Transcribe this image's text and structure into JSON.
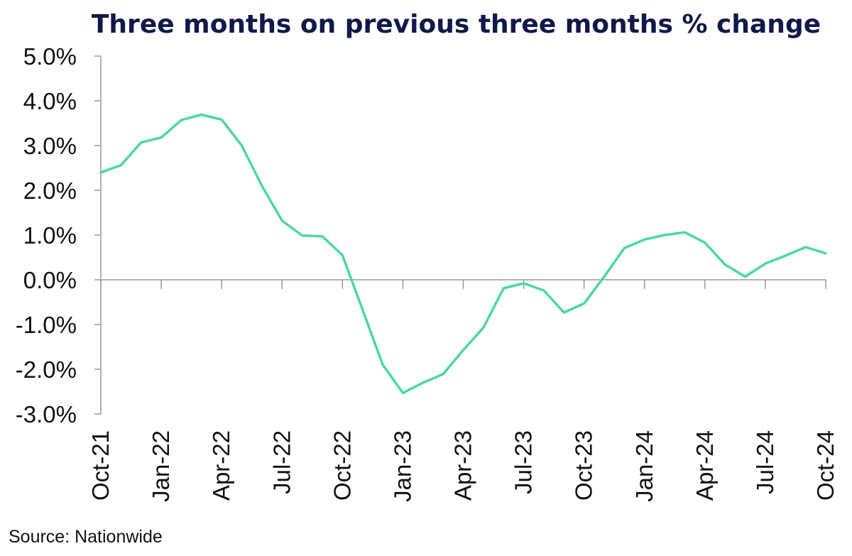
{
  "chart_data": {
    "type": "line",
    "title": "Three months on previous three months % change",
    "source": "Source: Nationwide",
    "xlabel": "",
    "ylabel": "",
    "x": [
      "Oct-21",
      "Nov-21",
      "Dec-21",
      "Jan-22",
      "Feb-22",
      "Mar-22",
      "Apr-22",
      "May-22",
      "Jun-22",
      "Jul-22",
      "Aug-22",
      "Sep-22",
      "Oct-22",
      "Nov-22",
      "Dec-22",
      "Jan-23",
      "Feb-23",
      "Mar-23",
      "Apr-23",
      "May-23",
      "Jun-23",
      "Jul-23",
      "Aug-23",
      "Sep-23",
      "Oct-23",
      "Nov-23",
      "Dec-23",
      "Jan-24",
      "Feb-24",
      "Mar-24",
      "Apr-24",
      "May-24",
      "Jun-24",
      "Jul-24",
      "Aug-24",
      "Sep-24",
      "Oct-24"
    ],
    "x_tick_labels": [
      "Oct-21",
      "Jan-22",
      "Apr-22",
      "Jul-22",
      "Oct-22",
      "Jan-23",
      "Apr-23",
      "Jul-23",
      "Oct-23",
      "Jan-24",
      "Apr-24",
      "Jul-24",
      "Oct-24"
    ],
    "series": [
      {
        "values": [
          2.4,
          2.56,
          3.07,
          3.18,
          3.57,
          3.69,
          3.58,
          3.0,
          2.1,
          1.32,
          0.99,
          0.97,
          0.55,
          -0.67,
          -1.9,
          -2.53,
          -2.3,
          -2.11,
          -1.57,
          -1.07,
          -0.19,
          -0.08,
          -0.24,
          -0.73,
          -0.53,
          0.07,
          0.71,
          0.9,
          1.0,
          1.06,
          0.83,
          0.34,
          0.07,
          0.36,
          0.54,
          0.73,
          0.59
        ],
        "color": "#4cd99b"
      }
    ],
    "ylim": [
      -3.0,
      5.0
    ],
    "yticks": [
      5.0,
      4.0,
      3.0,
      2.0,
      1.0,
      0.0,
      -1.0,
      -2.0,
      -3.0
    ],
    "ytick_labels": [
      "5.0%",
      "4.0%",
      "3.0%",
      "2.0%",
      "1.0%",
      "0.0%",
      "-1.0%",
      "-2.0%",
      "-3.0%"
    ],
    "grid": false,
    "legend": "none",
    "colors": {
      "line": "#4cd99b",
      "title": "#10194a",
      "axis": "#999999",
      "text": "#111111"
    }
  }
}
